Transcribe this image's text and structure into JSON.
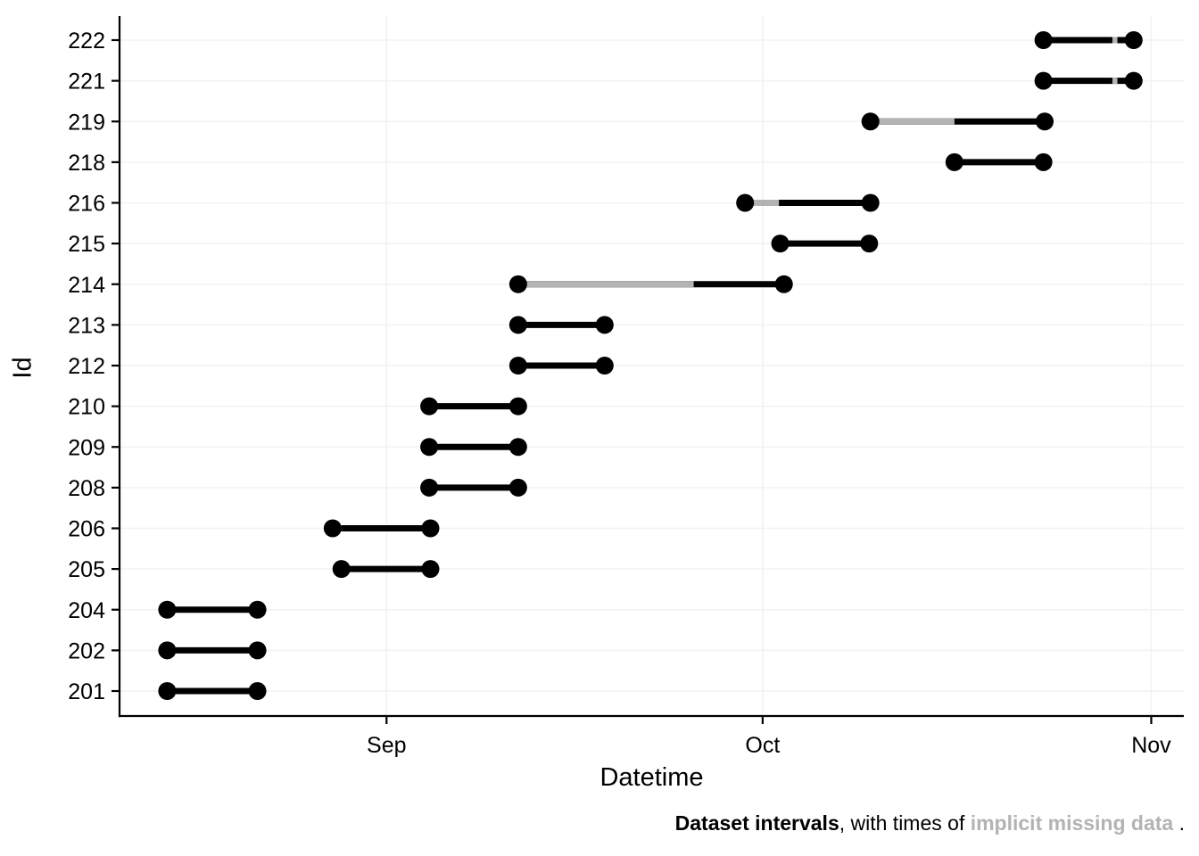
{
  "chart_data": {
    "type": "interval_range",
    "xlabel": "Datetime",
    "ylabel": "Id",
    "x_unit": "days relative to Sep 1",
    "x_domain": [
      -21.3,
      63.6
    ],
    "x_ticks": [
      {
        "label": "Sep",
        "day": 0
      },
      {
        "label": "Oct",
        "day": 30
      },
      {
        "label": "Nov",
        "day": 61
      }
    ],
    "grid": "major-only",
    "legend": "none",
    "ids_top_to_bottom": [
      "222",
      "221",
      "219",
      "218",
      "216",
      "215",
      "214",
      "213",
      "212",
      "210",
      "209",
      "208",
      "206",
      "205",
      "204",
      "202",
      "201"
    ],
    "intervals": [
      {
        "id": "222",
        "start": 52.4,
        "end": 59.6,
        "missing": [
          [
            57.9,
            58.3
          ]
        ]
      },
      {
        "id": "221",
        "start": 52.4,
        "end": 59.6,
        "missing": [
          [
            57.9,
            58.3
          ]
        ]
      },
      {
        "id": "219",
        "start": 38.6,
        "end": 52.5,
        "missing": [
          [
            38.6,
            45.3
          ]
        ]
      },
      {
        "id": "218",
        "start": 45.3,
        "end": 52.4,
        "missing": []
      },
      {
        "id": "216",
        "start": 28.6,
        "end": 38.6,
        "missing": [
          [
            28.6,
            31.3
          ]
        ]
      },
      {
        "id": "215",
        "start": 31.4,
        "end": 38.5,
        "missing": []
      },
      {
        "id": "214",
        "start": 10.5,
        "end": 31.7,
        "missing": [
          [
            10.5,
            24.5
          ]
        ]
      },
      {
        "id": "213",
        "start": 10.5,
        "end": 17.4,
        "missing": []
      },
      {
        "id": "212",
        "start": 10.5,
        "end": 17.4,
        "missing": []
      },
      {
        "id": "210",
        "start": 3.4,
        "end": 10.5,
        "missing": []
      },
      {
        "id": "209",
        "start": 3.4,
        "end": 10.5,
        "missing": []
      },
      {
        "id": "208",
        "start": 3.4,
        "end": 10.5,
        "missing": []
      },
      {
        "id": "206",
        "start": -4.3,
        "end": 3.5,
        "missing": [
          [
            -4.3,
            -3.6
          ]
        ]
      },
      {
        "id": "205",
        "start": -3.6,
        "end": 3.5,
        "missing": []
      },
      {
        "id": "204",
        "start": -17.5,
        "end": -10.3,
        "missing": []
      },
      {
        "id": "202",
        "start": -17.5,
        "end": -10.3,
        "missing": []
      },
      {
        "id": "201",
        "start": -17.5,
        "end": -10.3,
        "missing": []
      }
    ],
    "colors": {
      "interval": "#000000",
      "missing": "#b3b3b3",
      "gridline": "#f2f2f2",
      "axis": "#000000",
      "tick_label": "#000000"
    }
  },
  "caption": {
    "part1_bold": "Dataset intervals",
    "part2": ", with times of ",
    "part3_gray_bold": "implicit missing data",
    "part4": " ."
  }
}
